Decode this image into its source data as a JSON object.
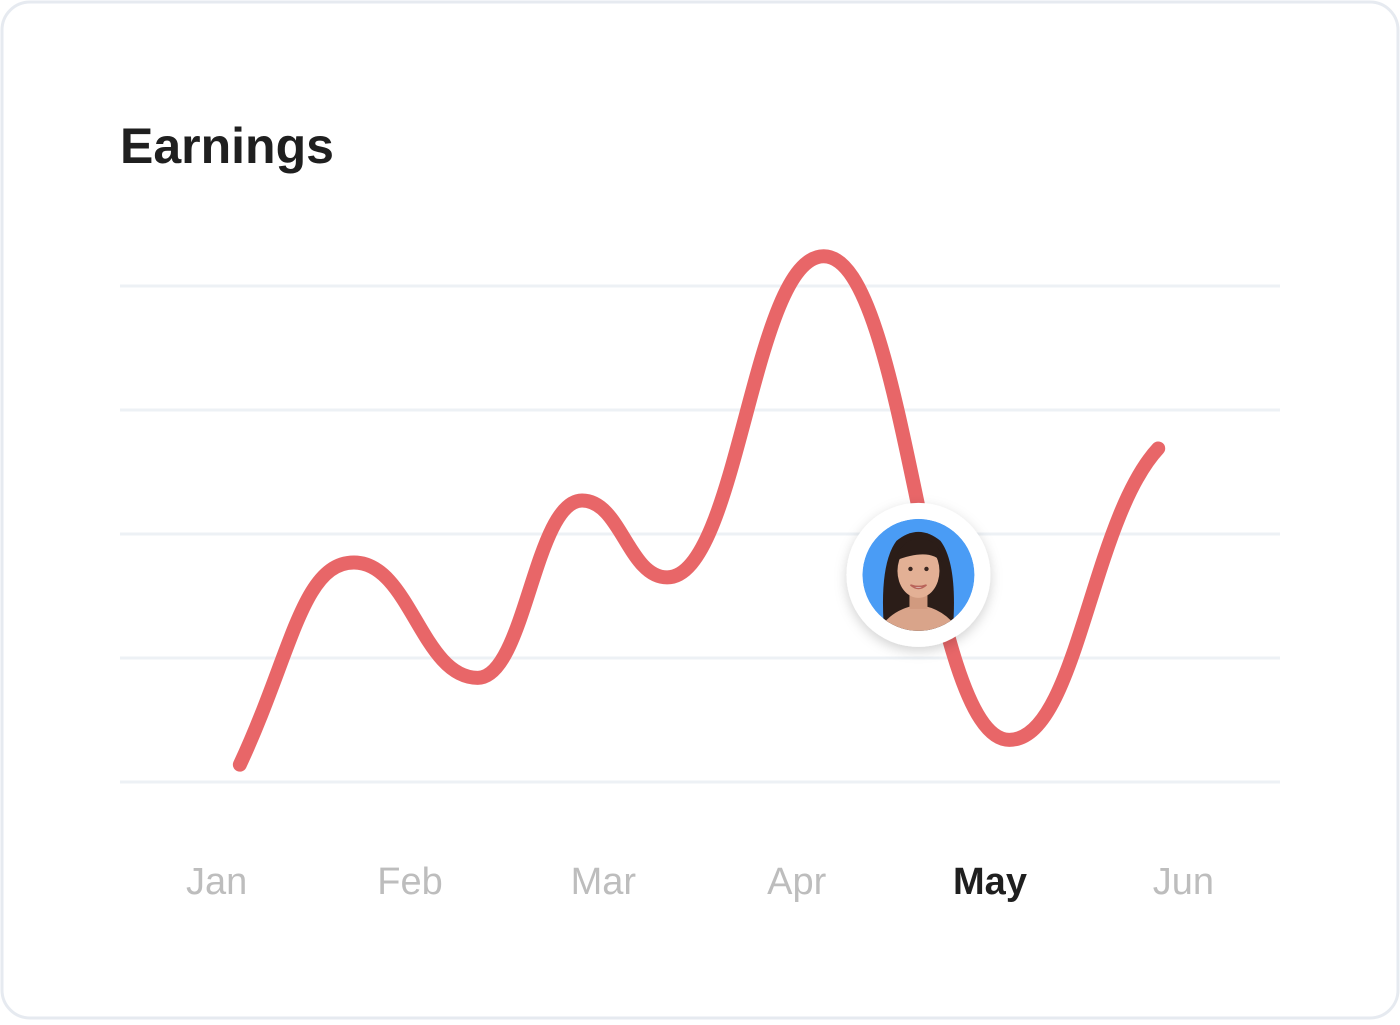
{
  "chart_data": {
    "type": "line",
    "title": "Earnings",
    "categories": [
      "Jan",
      "Feb",
      "Mar",
      "Apr",
      "May",
      "Jun"
    ],
    "highlighted_category_index": 4,
    "xlim": [
      -0.5,
      5.5
    ],
    "ylim": [
      0,
      4
    ],
    "yticks": [
      0,
      1,
      2,
      3,
      4
    ],
    "grid": true,
    "series": [
      {
        "color": "#e86668",
        "x": [
          0.12,
          0.71,
          1.35,
          1.89,
          2.33,
          3.14,
          4.1,
          4.87
        ],
        "values": [
          0.14,
          1.77,
          0.84,
          2.27,
          1.65,
          4.24,
          0.34,
          2.69
        ]
      }
    ],
    "marker": {
      "x": 3.63,
      "y": 1.67
    }
  }
}
